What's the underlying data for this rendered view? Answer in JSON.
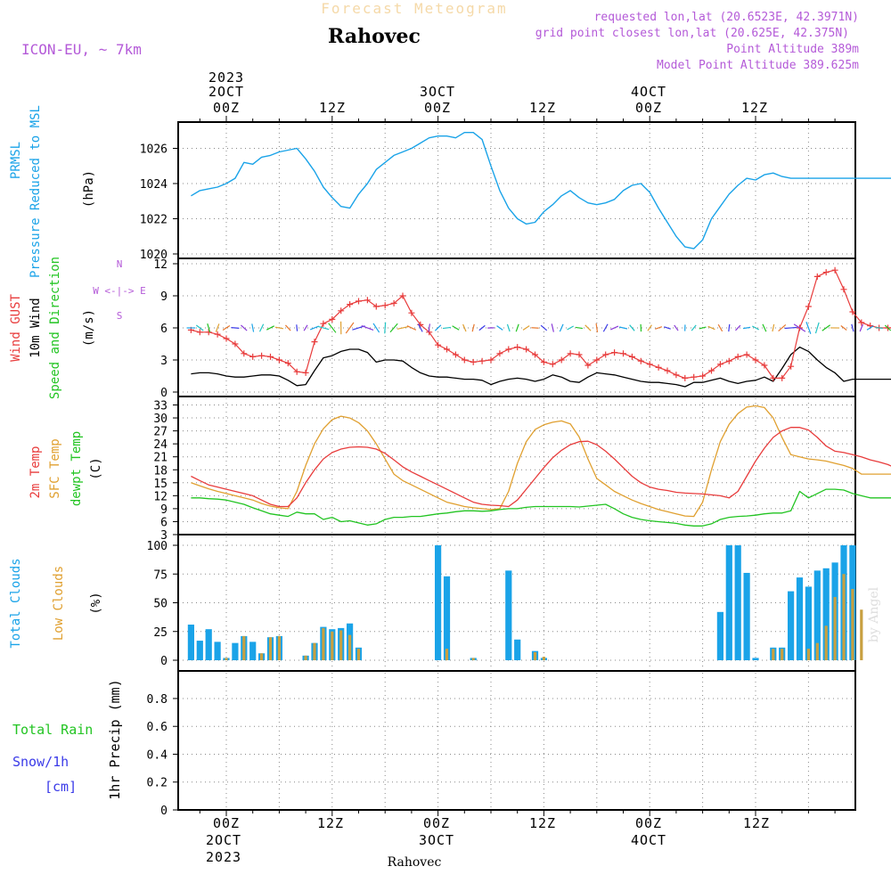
{
  "header": {
    "main_title": "Forecast Meteogram",
    "location": "Rahovec",
    "model": "ICON-EU, ~ 7km",
    "requested": "requested lon,lat (20.6523E, 42.3971N)",
    "grid_point": "grid point closest lon,lat (20.625E, 42.375N)",
    "point_alt": "Point Altitude 389m",
    "model_alt": "Model Point Altitude 389.625m",
    "footer": "Rahovec",
    "credit": "by Angel"
  },
  "colors": {
    "pressure": "#1aa3e8",
    "gust": "#e83c3c",
    "wind": "#000000",
    "temp": "#e83c3c",
    "sfc": "#e0a030",
    "dew": "#22c422",
    "total_cloud": "#1aa3e8",
    "low_cloud": "#c8a040",
    "rain": "#22c422",
    "snow": "#3a3ae8",
    "purple": "#b45ad8"
  },
  "time_axis": {
    "top": [
      "2023",
      "2OCT",
      "00Z",
      "12Z",
      "3OCT",
      "00Z",
      "12Z",
      "4OCT",
      "00Z",
      "12Z"
    ],
    "bottom": [
      "00Z",
      "2OCT",
      "2023",
      "12Z",
      "00Z",
      "3OCT",
      "12Z",
      "00Z",
      "4OCT",
      "12Z"
    ]
  },
  "chart_data": [
    {
      "type": "line",
      "panel": "pressure",
      "ylabel_lines": [
        "PRMSL",
        "Pressure Reduced to MSL",
        "(hPa)"
      ],
      "ylim": [
        1020,
        1027
      ],
      "yticks": [
        "1020",
        "1022",
        "1024",
        "1026"
      ],
      "x_hours": [
        -4,
        -3,
        -2,
        -1,
        0,
        1,
        2,
        3,
        4,
        5,
        6,
        7,
        8,
        9,
        10,
        11,
        12,
        13,
        14,
        15,
        16,
        17,
        18,
        19,
        20,
        21,
        22,
        23,
        24,
        25,
        26,
        27,
        28,
        29,
        30,
        31,
        32,
        33,
        34,
        35,
        36,
        37,
        38,
        39,
        40,
        41,
        42,
        43,
        44,
        45,
        46,
        47,
        48,
        49,
        50,
        51,
        52,
        53,
        54,
        55,
        56,
        57,
        58,
        59,
        60,
        61,
        62,
        63,
        64,
        65,
        66,
        67,
        68,
        69,
        70,
        71,
        72,
        73,
        74,
        75,
        76
      ],
      "series": [
        {
          "values": [
            1023.3,
            1023.6,
            1023.7,
            1023.8,
            1024.0,
            1024.3,
            1025.2,
            1025.1,
            1025.5,
            1025.6,
            1025.8,
            1025.9,
            1026.0,
            1025.4,
            1024.7,
            1023.8,
            1023.2,
            1022.7,
            1022.6,
            1023.4,
            1024.0,
            1024.8,
            1025.2,
            1025.6,
            1025.8,
            1026.0,
            1026.3,
            1026.6,
            1026.7,
            1026.7,
            1026.6,
            1026.9,
            1026.9,
            1026.5,
            1025.0,
            1023.6,
            1022.6,
            1022.0,
            1021.7,
            1021.8,
            1022.4,
            1022.8,
            1023.3,
            1023.6,
            1023.2,
            1022.9,
            1022.8,
            1022.9,
            1023.1,
            1023.6,
            1023.9,
            1024.0,
            1023.5,
            1022.6,
            1021.8,
            1021.0,
            1020.4,
            1020.3,
            1020.8,
            1022.0,
            1022.7,
            1023.4,
            1023.9,
            1024.3,
            1024.2,
            1024.5,
            1024.6,
            1024.4,
            1024.3,
            1024.3,
            1024.3,
            1024.3,
            1024.3,
            1024.3,
            1024.3,
            1024.3,
            1024.3,
            1024.3,
            1024.3,
            1024.3,
            1024.3
          ]
        }
      ]
    },
    {
      "type": "line",
      "panel": "wind",
      "ylabel_lines": [
        "Wind GUST",
        "10m Wind",
        "Speed and Direction",
        "(m/s)"
      ],
      "compass": [
        "N",
        "W <-|-> E",
        "S"
      ],
      "ylim": [
        0,
        12
      ],
      "yticks": [
        "0",
        "3",
        "6",
        "9",
        "12"
      ],
      "x_hours": [
        -4,
        -3,
        -2,
        -1,
        0,
        1,
        2,
        3,
        4,
        5,
        6,
        7,
        8,
        9,
        10,
        11,
        12,
        13,
        14,
        15,
        16,
        17,
        18,
        19,
        20,
        21,
        22,
        23,
        24,
        25,
        26,
        27,
        28,
        29,
        30,
        31,
        32,
        33,
        34,
        35,
        36,
        37,
        38,
        39,
        40,
        41,
        42,
        43,
        44,
        45,
        46,
        47,
        48,
        49,
        50,
        51,
        52,
        53,
        54,
        55,
        56,
        57,
        58,
        59,
        60,
        61,
        62,
        63,
        64,
        65,
        66,
        67,
        68,
        69,
        70,
        71,
        72,
        73,
        74,
        75,
        76
      ],
      "series": [
        {
          "values": [
            5.8,
            5.6,
            5.6,
            5.4,
            5.0,
            4.5,
            3.6,
            3.3,
            3.4,
            3.3,
            3.0,
            2.7,
            1.9,
            1.8,
            4.7,
            6.4,
            6.8,
            7.6,
            8.2,
            8.5,
            8.6,
            8.0,
            8.1,
            8.3,
            9.0,
            7.4,
            6.3,
            5.6,
            4.4,
            4.0,
            3.5,
            3.0,
            2.8,
            2.9,
            3.0,
            3.6,
            4.0,
            4.2,
            4.0,
            3.5,
            2.8,
            2.6,
            3.0,
            3.6,
            3.5,
            2.5,
            3.0,
            3.5,
            3.7,
            3.6,
            3.3,
            2.9,
            2.6,
            2.3,
            2.0,
            1.6,
            1.3,
            1.4,
            1.5,
            2.0,
            2.6,
            2.9,
            3.3,
            3.5,
            3.0,
            2.5,
            1.3,
            1.3,
            2.4,
            6.0,
            8.0,
            10.8,
            11.2,
            11.4,
            9.6,
            7.5,
            6.5,
            6.2,
            6.0,
            6.0,
            6.0
          ]
        },
        {
          "values": [
            1.7,
            1.8,
            1.8,
            1.7,
            1.5,
            1.4,
            1.4,
            1.5,
            1.6,
            1.6,
            1.5,
            1.1,
            0.6,
            0.7,
            2.0,
            3.2,
            3.4,
            3.8,
            4.0,
            4.0,
            3.7,
            2.8,
            3.0,
            3.0,
            2.9,
            2.3,
            1.8,
            1.5,
            1.4,
            1.4,
            1.3,
            1.2,
            1.2,
            1.1,
            0.7,
            1.0,
            1.2,
            1.3,
            1.2,
            1.0,
            1.2,
            1.6,
            1.4,
            1.0,
            0.9,
            1.4,
            1.8,
            1.7,
            1.6,
            1.4,
            1.2,
            1.0,
            0.9,
            0.9,
            0.8,
            0.7,
            0.5,
            0.9,
            0.9,
            1.1,
            1.3,
            1.0,
            0.8,
            1.0,
            1.1,
            1.4,
            1.0,
            2.2,
            3.5,
            4.2,
            3.8,
            3.0,
            2.3,
            1.8,
            1.0,
            1.2,
            1.2,
            1.2,
            1.2,
            1.2,
            1.2
          ]
        }
      ]
    },
    {
      "type": "line",
      "panel": "temperature",
      "ylabel_lines": [
        "2m Temp",
        "SFC Temp",
        "dewpt Temp",
        "(C)"
      ],
      "ylim": [
        3,
        33
      ],
      "yticks": [
        "3",
        "6",
        "9",
        "12",
        "15",
        "18",
        "21",
        "24",
        "27",
        "30",
        "33"
      ],
      "x_hours": [
        -4,
        -3,
        -2,
        -1,
        0,
        1,
        2,
        3,
        4,
        5,
        6,
        7,
        8,
        9,
        10,
        11,
        12,
        13,
        14,
        15,
        16,
        17,
        18,
        19,
        20,
        21,
        22,
        23,
        24,
        25,
        26,
        27,
        28,
        29,
        30,
        31,
        32,
        33,
        34,
        35,
        36,
        37,
        38,
        39,
        40,
        41,
        42,
        43,
        44,
        45,
        46,
        47,
        48,
        49,
        50,
        51,
        52,
        53,
        54,
        55,
        56,
        57,
        58,
        59,
        60,
        61,
        62,
        63,
        64,
        65,
        66,
        67,
        68,
        69,
        70,
        71,
        72,
        73,
        74,
        75,
        76
      ],
      "series": [
        {
          "values": [
            16.5,
            15.5,
            14.5,
            14.0,
            13.5,
            13.0,
            12.5,
            12.0,
            11.0,
            10.0,
            9.5,
            9.5,
            11.5,
            15.0,
            18.0,
            20.5,
            22.0,
            22.8,
            23.2,
            23.3,
            23.2,
            22.8,
            21.8,
            20.3,
            18.7,
            17.5,
            16.5,
            15.5,
            14.5,
            13.5,
            12.5,
            11.5,
            10.5,
            10.0,
            9.8,
            9.7,
            9.5,
            11.0,
            13.5,
            16.0,
            18.5,
            20.8,
            22.5,
            23.8,
            24.5,
            24.6,
            23.8,
            22.3,
            20.5,
            18.5,
            16.5,
            15.0,
            14.0,
            13.5,
            13.2,
            12.8,
            12.6,
            12.5,
            12.4,
            12.2,
            12.0,
            11.5,
            13.0,
            16.5,
            20.0,
            23.0,
            25.5,
            27.0,
            27.8,
            27.8,
            27.2,
            25.5,
            23.5,
            22.3,
            22.0,
            21.5,
            21.0,
            20.3,
            19.8,
            19.2,
            18.3
          ]
        },
        {
          "values": [
            15.0,
            14.3,
            13.6,
            13.0,
            12.5,
            12.0,
            11.5,
            11.0,
            10.2,
            9.6,
            9.2,
            9.0,
            13.0,
            19.0,
            24.0,
            27.5,
            29.6,
            30.4,
            30.0,
            28.9,
            27.0,
            24.0,
            20.5,
            17.0,
            15.5,
            14.5,
            13.5,
            12.5,
            11.5,
            10.5,
            10.0,
            9.5,
            9.2,
            9.0,
            8.8,
            9.0,
            13.0,
            19.5,
            24.5,
            27.3,
            28.4,
            29.0,
            29.3,
            28.6,
            25.6,
            20.5,
            16.0,
            14.5,
            13.0,
            12.0,
            11.0,
            10.2,
            9.5,
            8.8,
            8.3,
            7.8,
            7.3,
            7.2,
            10.5,
            18.0,
            24.5,
            28.5,
            31.0,
            32.5,
            32.8,
            32.4,
            30.0,
            25.5,
            21.5,
            21.0,
            20.5,
            20.3,
            20.0,
            19.5,
            19.0,
            18.3,
            17.0,
            17.0,
            17.0,
            17.0,
            17.0
          ]
        },
        {
          "values": [
            11.5,
            11.5,
            11.3,
            11.2,
            11.0,
            10.5,
            10.0,
            9.2,
            8.5,
            7.8,
            7.5,
            7.2,
            8.2,
            7.8,
            7.8,
            6.5,
            7.0,
            6.0,
            6.2,
            5.7,
            5.2,
            5.5,
            6.5,
            7.0,
            7.0,
            7.2,
            7.2,
            7.5,
            7.8,
            8.0,
            8.3,
            8.5,
            8.5,
            8.4,
            8.5,
            8.8,
            9.0,
            9.0,
            9.3,
            9.5,
            9.5,
            9.5,
            9.5,
            9.5,
            9.4,
            9.6,
            9.8,
            10.0,
            9.0,
            7.8,
            7.0,
            6.5,
            6.2,
            6.0,
            5.8,
            5.6,
            5.2,
            5.0,
            5.0,
            5.5,
            6.5,
            7.0,
            7.2,
            7.3,
            7.5,
            7.8,
            8.0,
            8.0,
            8.5,
            13.0,
            11.5,
            12.5,
            13.5,
            13.5,
            13.3,
            12.5,
            12.0,
            11.5,
            11.5,
            11.5,
            11.5
          ]
        }
      ]
    },
    {
      "type": "bar",
      "panel": "clouds",
      "ylabel_lines": [
        "Total Clouds",
        "Low Clouds",
        "(%)"
      ],
      "ylim": [
        0,
        100
      ],
      "yticks": [
        "0",
        "25",
        "50",
        "75",
        "100"
      ],
      "x_hours": [
        -4,
        -3,
        -2,
        -1,
        0,
        1,
        2,
        3,
        4,
        5,
        6,
        7,
        8,
        9,
        10,
        11,
        12,
        13,
        14,
        15,
        16,
        17,
        18,
        19,
        20,
        21,
        22,
        23,
        24,
        25,
        26,
        27,
        28,
        29,
        30,
        31,
        32,
        33,
        34,
        35,
        36,
        37,
        38,
        39,
        40,
        41,
        42,
        43,
        44,
        45,
        46,
        47,
        48,
        49,
        50,
        51,
        52,
        53,
        54,
        55,
        56,
        57,
        58,
        59,
        60,
        61,
        62,
        63,
        64,
        65,
        66,
        67,
        68,
        69,
        70,
        71,
        72,
        73,
        74,
        75,
        76
      ],
      "series": [
        {
          "name": "Total",
          "values": [
            31,
            17,
            27,
            16,
            2,
            15,
            21,
            16,
            6,
            20,
            21,
            0,
            0,
            4,
            15,
            29,
            27,
            28,
            32,
            11,
            0,
            0,
            0,
            0,
            0,
            0,
            0,
            0,
            100,
            73,
            0,
            0,
            2,
            0,
            0,
            0,
            78,
            18,
            0,
            8,
            2,
            0,
            0,
            0,
            0,
            0,
            0,
            0,
            0,
            0,
            0,
            0,
            0,
            0,
            0,
            0,
            0,
            0,
            0,
            0,
            42,
            100,
            100,
            76,
            2,
            0,
            11,
            11,
            60,
            72,
            64,
            78,
            80,
            85,
            100,
            100,
            0,
            0,
            0,
            0,
            0
          ]
        },
        {
          "name": "Low",
          "values": [
            0,
            0,
            0,
            0,
            2,
            0,
            21,
            0,
            6,
            20,
            21,
            0,
            0,
            4,
            15,
            28,
            25,
            26,
            22,
            10,
            0,
            0,
            0,
            0,
            0,
            0,
            0,
            0,
            0,
            10,
            0,
            0,
            2,
            0,
            0,
            0,
            0,
            0,
            0,
            7,
            3,
            0,
            0,
            0,
            0,
            0,
            0,
            0,
            0,
            0,
            0,
            0,
            0,
            0,
            0,
            0,
            0,
            0,
            0,
            0,
            0,
            0,
            0,
            0,
            0,
            0,
            10,
            10,
            0,
            0,
            10,
            15,
            30,
            55,
            75,
            62,
            44,
            0,
            0,
            0,
            0
          ]
        }
      ]
    },
    {
      "type": "bar",
      "panel": "precipitation",
      "ylabel_lines": [
        "Total  Rain",
        "Snow/1h",
        "[cm]",
        "1hr Precip (mm)"
      ],
      "ylim": [
        0,
        1.0
      ],
      "yticks": [
        "0",
        "0.2",
        "0.4",
        "0.6",
        "0.8"
      ],
      "series": [
        {
          "name": "Total Rain",
          "values": []
        }
      ]
    }
  ]
}
